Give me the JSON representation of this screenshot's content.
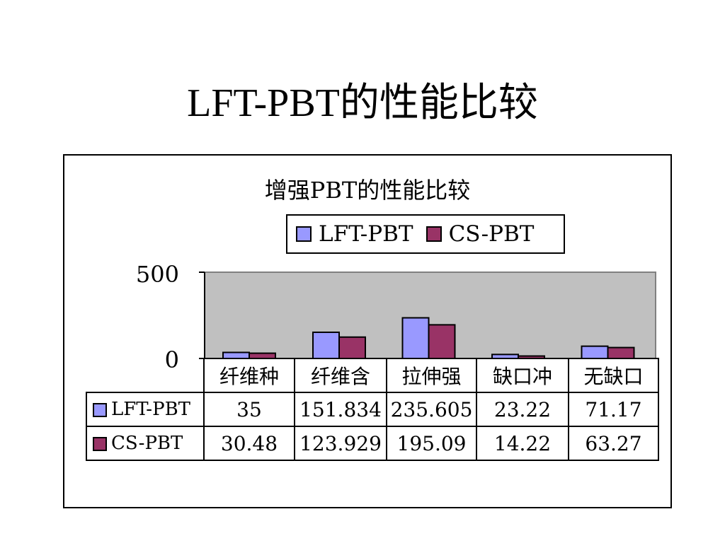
{
  "slide": {
    "title": "LFT-PBT的性能比较"
  },
  "chart_data": {
    "type": "bar",
    "title": "增强PBT的性能比较",
    "categories": [
      "纤维种",
      "纤维含",
      "拉伸强",
      "缺口冲",
      "无缺口"
    ],
    "series": [
      {
        "name": "LFT-PBT",
        "values": [
          35,
          151.834,
          235.605,
          23.22,
          71.17
        ],
        "labels": [
          "35",
          "151.834",
          "235.605",
          "23.22",
          "71.17"
        ],
        "color": "#9999ff"
      },
      {
        "name": "CS-PBT",
        "values": [
          30.48,
          123.929,
          195.09,
          14.22,
          63.27
        ],
        "labels": [
          "30.48",
          "123.929",
          "195.09",
          "14.22",
          "63.27"
        ],
        "color": "#993366"
      }
    ],
    "ylim": [
      0,
      500
    ],
    "yticks": [
      "500",
      "0"
    ],
    "plot_background": "#c0c0c0",
    "legend_position": "top",
    "grid": false,
    "data_table": true
  }
}
